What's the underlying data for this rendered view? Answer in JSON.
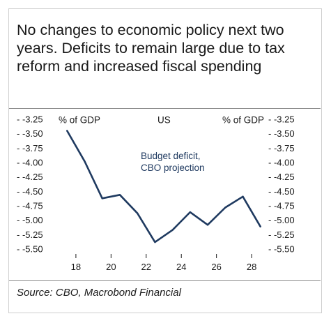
{
  "title": "No changes to economic policy next two years. Deficits to remain large due to tax reform and increased fiscal spending",
  "source": "Source: CBO, Macrobond Financial",
  "colors": {
    "line": "#1f3a60",
    "text": "#1a1a1a",
    "annotation": "#1f3a60"
  },
  "chart_data": {
    "type": "line",
    "region_label": "US",
    "left_unit": "% of GDP",
    "right_unit": "% of GDP",
    "annotation": [
      "Budget deficit,",
      "CBO projection"
    ],
    "y_ticks": [
      "-3.25",
      "-3.50",
      "-3.75",
      "-4.00",
      "-4.25",
      "-4.50",
      "-4.75",
      "-5.00",
      "-5.25",
      "-5.50"
    ],
    "ylim": [
      -5.5,
      -3.25
    ],
    "x_ticks": [
      "18",
      "20",
      "22",
      "24",
      "26",
      "28"
    ],
    "x_tick_values": [
      2018,
      2020,
      2022,
      2024,
      2026,
      2028
    ],
    "xlim": [
      2017.25,
      2028.75
    ],
    "series": [
      {
        "x": [
          2017.5,
          2018.5,
          2019.5,
          2020.5,
          2021.5,
          2022.5,
          2023.5,
          2024.5,
          2025.5,
          2026.5,
          2027.5,
          2028.5
        ],
        "values": [
          -3.45,
          -3.98,
          -4.62,
          -4.56,
          -4.88,
          -5.38,
          -5.17,
          -4.86,
          -5.08,
          -4.78,
          -4.59,
          -5.11
        ]
      }
    ],
    "grid": false
  }
}
